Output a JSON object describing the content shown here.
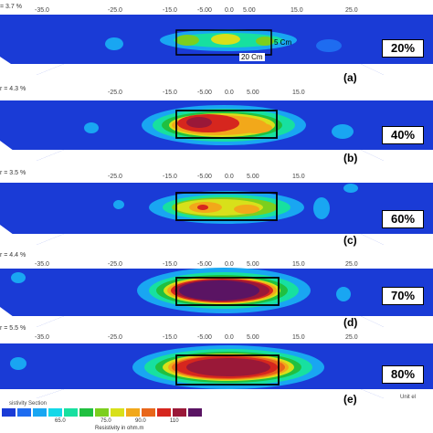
{
  "panels": [
    {
      "label": "(a)",
      "percent": "20%",
      "rms": "= 3.7 %",
      "ticks": [
        "-35.0",
        "-25.0",
        "-15.0",
        "-5.00",
        "0.0",
        "5.00",
        "15.0",
        "25.0"
      ],
      "electrode_box_label": "20 Cm",
      "depth_label": "5 Cm"
    },
    {
      "label": "(b)",
      "percent": "40%",
      "rms": "r = 4.3 %",
      "ticks": [
        "-25.0",
        "-15.0",
        "-5.00",
        "0.0",
        "5.00",
        "15.0"
      ]
    },
    {
      "label": "(c)",
      "percent": "60%",
      "rms": "r = 3.5 %",
      "ticks": [
        "-25.0",
        "-15.0",
        "-5.00",
        "0.0",
        "5.00",
        "15.0"
      ]
    },
    {
      "label": "(d)",
      "percent": "70%",
      "rms": "r = 4.4 %",
      "ticks": [
        "-35.0",
        "-25.0",
        "-15.0",
        "-5.00",
        "0.0",
        "5.00",
        "15.0",
        "25.0"
      ]
    },
    {
      "label": "(e)",
      "percent": "80%",
      "rms": "r = 5.5 %",
      "ticks": [
        "-35.0",
        "-25.0",
        "-15.0",
        "-5.00",
        "0.0",
        "5.00",
        "15.0",
        "25.0"
      ]
    }
  ],
  "legend": {
    "title": "sistivity Section",
    "unit": "Resistivity in ohm.m",
    "right_unit": "Unit el",
    "values": [
      "65.0",
      "75.0",
      "90.0",
      "110"
    ],
    "colors": [
      "#1a3bd6",
      "#1e6cf0",
      "#19a6f2",
      "#14d8e8",
      "#17e0a0",
      "#20c040",
      "#7ccf1e",
      "#d8e01a",
      "#f2a81a",
      "#e8661a",
      "#d6261e",
      "#9a1838",
      "#5a1463"
    ]
  }
}
